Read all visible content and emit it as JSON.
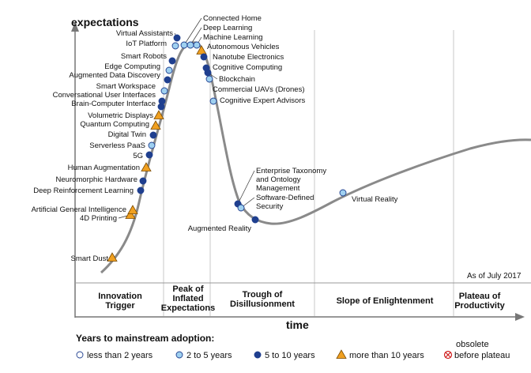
{
  "axes": {
    "y_label": "expectations",
    "x_label": "time"
  },
  "as_of": "As of July 2017",
  "phases": [
    {
      "name": [
        "Innovation",
        "Trigger"
      ]
    },
    {
      "name": [
        "Peak of",
        "Inflated",
        "Expectations"
      ]
    },
    {
      "name": [
        "Trough of",
        "Disillusionment"
      ]
    },
    {
      "name": [
        "Slope of Enlightenment"
      ]
    },
    {
      "name": [
        "Plateau of",
        "Productivity"
      ]
    }
  ],
  "legend": {
    "title": "Years to mainstream adoption:",
    "items": [
      {
        "key": "lt2",
        "label": "less than 2 years",
        "color": "#ffffff"
      },
      {
        "key": "2to5",
        "label": "2 to 5 years",
        "color": "#9fd0f0"
      },
      {
        "key": "5to10",
        "label": "5 to 10 years",
        "color": "#1f3f8f"
      },
      {
        "key": "gt10",
        "label": "more than 10 years",
        "color": "#f0a020"
      }
    ],
    "obsolete": [
      "obsolete",
      "before plateau"
    ]
  },
  "technologies": [
    {
      "name": "Smart Dust",
      "cat": "gt10"
    },
    {
      "name": "4D Printing",
      "cat": "gt10"
    },
    {
      "name": "Artificial General Intelligence",
      "cat": "gt10"
    },
    {
      "name": "Deep Reinforcement Learning",
      "cat": "5to10"
    },
    {
      "name": "Neuromorphic Hardware",
      "cat": "5to10"
    },
    {
      "name": "Human Augmentation",
      "cat": "gt10"
    },
    {
      "name": "5G",
      "cat": "5to10"
    },
    {
      "name": "Serverless PaaS",
      "cat": "2to5"
    },
    {
      "name": "Digital Twin",
      "cat": "5to10"
    },
    {
      "name": "Quantum Computing",
      "cat": "gt10"
    },
    {
      "name": "Volumetric Displays",
      "cat": "gt10"
    },
    {
      "name": "Brain-Computer Interface",
      "cat": "5to10"
    },
    {
      "name": "Conversational User Interfaces",
      "cat": "5to10"
    },
    {
      "name": "Smart Workspace",
      "cat": "2to5"
    },
    {
      "name": "Augmented Data Discovery",
      "cat": "5to10"
    },
    {
      "name": "Edge Computing",
      "cat": "2to5"
    },
    {
      "name": "Smart Robots",
      "cat": "5to10"
    },
    {
      "name": "IoT Platform",
      "cat": "2to5"
    },
    {
      "name": "Virtual Assistants",
      "cat": "5to10"
    },
    {
      "name": "Connected Home",
      "cat": "2to5"
    },
    {
      "name": "Deep Learning",
      "cat": "2to5"
    },
    {
      "name": "Machine Learning",
      "cat": "2to5"
    },
    {
      "name": "Autonomous Vehicles",
      "cat": "gt10"
    },
    {
      "name": "Nanotube Electronics",
      "cat": "5to10"
    },
    {
      "name": "Cognitive Computing",
      "cat": "5to10"
    },
    {
      "name": "Blockchain",
      "cat": "5to10"
    },
    {
      "name": "Commercial UAVs (Drones)",
      "cat": "2to5"
    },
    {
      "name": "Cognitive Expert Advisors",
      "cat": "2to5"
    },
    {
      "name": "Enterprise Taxonomy and Ontology Management",
      "cat": "5to10"
    },
    {
      "name": "Software-Defined Security",
      "cat": "2to5"
    },
    {
      "name": "Augmented Reality",
      "cat": "5to10"
    },
    {
      "name": "Virtual Reality",
      "cat": "2to5"
    }
  ]
}
